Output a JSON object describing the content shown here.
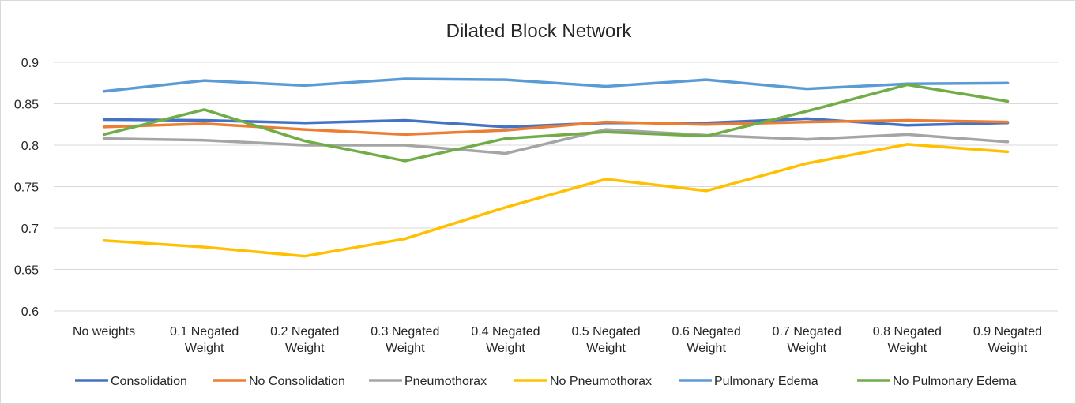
{
  "chart_data": {
    "type": "line",
    "title": "Dilated Block Network",
    "xlabel": "",
    "ylabel": "",
    "categories": [
      [
        "No weights"
      ],
      [
        "0.1 Negated",
        "Weight"
      ],
      [
        "0.2 Negated",
        "Weight"
      ],
      [
        "0.3 Negated",
        "Weight"
      ],
      [
        "0.4 Negated",
        "Weight"
      ],
      [
        "0.5 Negated",
        "Weight"
      ],
      [
        "0.6 Negated",
        "Weight"
      ],
      [
        "0.7 Negated",
        "Weight"
      ],
      [
        "0.8 Negated",
        "Weight"
      ],
      [
        "0.9 Negated",
        "Weight"
      ]
    ],
    "ylim": [
      0.6,
      0.9
    ],
    "yticks": [
      "0.9",
      "0.85",
      "0.8",
      "0.75",
      "0.7",
      "0.65",
      "0.6"
    ],
    "grid": true,
    "legend_position": "bottom",
    "series": [
      {
        "name": "Consolidation",
        "color": "#4472C4",
        "values": [
          0.831,
          0.83,
          0.827,
          0.83,
          0.822,
          0.827,
          0.827,
          0.832,
          0.824,
          0.827
        ]
      },
      {
        "name": "No Consolidation",
        "color": "#ED7D31",
        "values": [
          0.822,
          0.826,
          0.819,
          0.813,
          0.818,
          0.828,
          0.825,
          0.828,
          0.83,
          0.828
        ]
      },
      {
        "name": "Pneumothorax",
        "color": "#A5A5A5",
        "values": [
          0.808,
          0.806,
          0.8,
          0.8,
          0.79,
          0.819,
          0.812,
          0.807,
          0.813,
          0.804
        ]
      },
      {
        "name": "No Pneumothorax",
        "color": "#FFC000",
        "values": [
          0.685,
          0.677,
          0.666,
          0.687,
          0.725,
          0.759,
          0.745,
          0.778,
          0.801,
          0.792
        ]
      },
      {
        "name": "Pulmonary Edema",
        "color": "#5B9BD5",
        "values": [
          0.865,
          0.878,
          0.872,
          0.88,
          0.879,
          0.871,
          0.879,
          0.868,
          0.874,
          0.875
        ]
      },
      {
        "name": "No Pulmonary Edema",
        "color": "#70AD47",
        "values": [
          0.813,
          0.843,
          0.805,
          0.781,
          0.808,
          0.816,
          0.811,
          0.841,
          0.873,
          0.853
        ]
      }
    ]
  }
}
